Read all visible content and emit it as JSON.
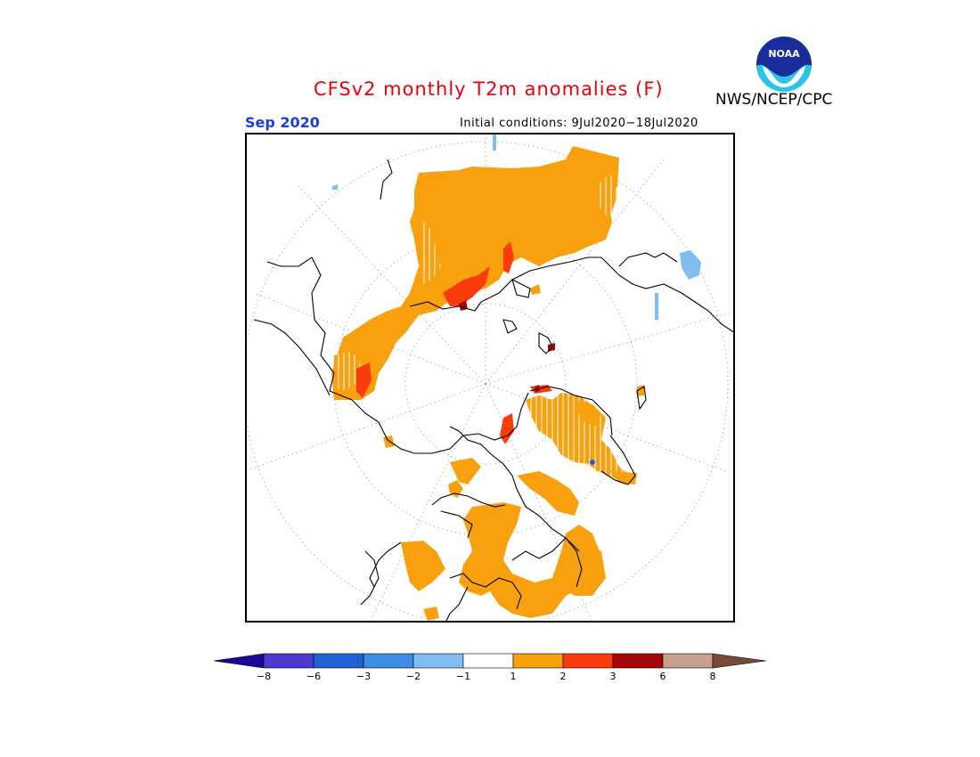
{
  "header": {
    "title": "CFSv2 monthly T2m anomalies (F)",
    "agency": "NWS/NCEP/CPC",
    "month": "Sep 2020",
    "initial_conditions": "Initial conditions: 9Jul2020−18Jul2020",
    "logo_text": "NOAA"
  },
  "map": {
    "projection": "north-polar-stereographic",
    "graticule": "dotted",
    "legend_entries": [
      {
        "range": "< -8",
        "color": "#1c0896"
      },
      {
        "range": "-8 to -6",
        "color": "#4a3ccf"
      },
      {
        "range": "-6 to -3",
        "color": "#1f63d2"
      },
      {
        "range": "-3 to -2",
        "color": "#3d8de6"
      },
      {
        "range": "-2 to -1",
        "color": "#82bdf2"
      },
      {
        "range": "-1 to 1",
        "color": "#ffffff"
      },
      {
        "range": "1 to 2",
        "color": "#f9a00f"
      },
      {
        "range": "2 to 3",
        "color": "#fa3b0c"
      },
      {
        "range": "3 to 6",
        "color": "#a50708"
      },
      {
        "range": "6 to 8",
        "color": "#c9a08c"
      },
      {
        "range": "> 8",
        "color": "#7a4a38"
      }
    ]
  },
  "colorbar": {
    "ticks": [
      "−8",
      "−6",
      "−3",
      "−2",
      "−1",
      "1",
      "2",
      "3",
      "6",
      "8"
    ],
    "colors": [
      "#1c0896",
      "#4a3ccf",
      "#1f63d2",
      "#3d8de6",
      "#82bdf2",
      "#ffffff",
      "#f9a00f",
      "#fa3b0c",
      "#a50708",
      "#c9a08c",
      "#7a4a38"
    ]
  }
}
